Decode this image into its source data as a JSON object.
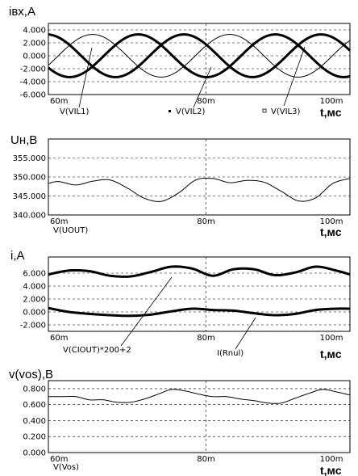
{
  "chart_data": [
    {
      "type": "line",
      "title": "iвх,A",
      "xunit": "t,мс",
      "xlim": [
        57,
        101
      ],
      "ylim": [
        -6,
        5
      ],
      "yticks": [
        "4.000",
        "2.000",
        "0.000",
        "-2.000",
        "-4.000",
        "-6.000"
      ],
      "ytick_values": [
        4,
        2,
        0,
        -2,
        -4,
        -6
      ],
      "xticks": [
        "60m",
        "80m",
        "100m"
      ],
      "xtick_values": [
        60,
        80,
        100
      ],
      "grid": "horizontal-dashed",
      "series": [
        {
          "name": "V(VIL1)",
          "amplitude": 3.3,
          "period_ms": 20,
          "phase_deg": 28,
          "style": "thin"
        },
        {
          "name": "V(VIL2)",
          "amplitude": 3.3,
          "period_ms": 20,
          "phase_deg": 148,
          "style": "bold"
        },
        {
          "name": "V(VIL3)",
          "amplitude": 3.3,
          "period_ms": 20,
          "phase_deg": 268,
          "style": "bold"
        }
      ]
    },
    {
      "type": "line",
      "title": "Uн,B",
      "xunit": "t,мс",
      "xlim": [
        57,
        101
      ],
      "ylim": [
        340,
        360
      ],
      "yticks": [
        "355.000",
        "350.000",
        "345.000",
        "340.000"
      ],
      "ytick_values": [
        355,
        350,
        345,
        340
      ],
      "xticks": [
        "60m",
        "80m",
        "100m"
      ],
      "xtick_values": [
        60,
        80,
        100
      ],
      "grid": "horizontal-dashed",
      "series": [
        {
          "name": "V(UOUT)",
          "x": [
            57,
            58.5,
            61,
            63.5,
            66,
            68.5,
            71,
            73.5,
            76,
            78.5,
            81,
            83.5,
            86,
            88.5,
            91,
            93.5,
            96,
            98.5,
            101
          ],
          "y": [
            348.3,
            348.8,
            347.9,
            348.9,
            349.2,
            347.1,
            344.4,
            343.6,
            345.8,
            349.2,
            349.6,
            348.5,
            349.1,
            348.6,
            346.2,
            343.7,
            344.5,
            348.3,
            349.6
          ]
        }
      ]
    },
    {
      "type": "line",
      "title": "i,A",
      "xunit": "t,мс",
      "xlim": [
        57,
        101
      ],
      "ylim": [
        -3,
        8.5
      ],
      "yticks": [
        "6.000",
        "4.000",
        "2.000",
        "0.000",
        "-2.000"
      ],
      "ytick_values": [
        6,
        4,
        2,
        0,
        -2
      ],
      "xticks": [
        "60m",
        "80m",
        "100m"
      ],
      "xtick_values": [
        60,
        80,
        100
      ],
      "grid": "horizontal-dashed",
      "series": [
        {
          "name": "V(CIOUT)*200+2",
          "x": [
            57,
            60,
            63,
            66,
            69,
            72,
            75,
            78,
            81,
            84,
            87,
            90,
            93,
            96,
            99,
            101
          ],
          "y": [
            5.8,
            6.4,
            6.3,
            5.6,
            5.5,
            6.2,
            7.0,
            6.7,
            5.6,
            6.6,
            6.6,
            5.7,
            6.1,
            7.0,
            6.4,
            5.8
          ]
        },
        {
          "name": "I(Rnul)",
          "x": [
            57,
            60,
            63,
            66,
            69,
            72,
            75,
            78,
            81,
            84,
            87,
            90,
            93,
            96,
            99,
            101
          ],
          "y": [
            0.6,
            0.0,
            -0.3,
            -0.5,
            -0.6,
            -0.4,
            0.1,
            0.5,
            0.3,
            0.2,
            -0.2,
            -0.5,
            -0.3,
            0.3,
            0.5,
            0.5
          ]
        }
      ]
    },
    {
      "type": "line",
      "title": "v(vos),B",
      "xunit": "t,мс",
      "xlim": [
        57,
        101
      ],
      "ylim": [
        0,
        0.9
      ],
      "yticks": [
        "0.800",
        "0.600",
        "0.400",
        "0.200",
        "0.000"
      ],
      "ytick_values": [
        0.8,
        0.6,
        0.4,
        0.2,
        0
      ],
      "xticks": [
        "60m",
        "80m",
        "100m"
      ],
      "xtick_values": [
        60,
        80,
        100
      ],
      "grid": "horizontal-dashed",
      "series": [
        {
          "name": "V(Vos)",
          "x": [
            57,
            59,
            61,
            63,
            65,
            67,
            69,
            71,
            73,
            75,
            77,
            79,
            81,
            83,
            85,
            87,
            89,
            91,
            93,
            95,
            97,
            99,
            101
          ],
          "y": [
            0.7,
            0.7,
            0.7,
            0.66,
            0.66,
            0.63,
            0.63,
            0.67,
            0.73,
            0.79,
            0.77,
            0.73,
            0.7,
            0.7,
            0.67,
            0.65,
            0.62,
            0.62,
            0.68,
            0.74,
            0.79,
            0.76,
            0.72
          ]
        }
      ]
    }
  ]
}
